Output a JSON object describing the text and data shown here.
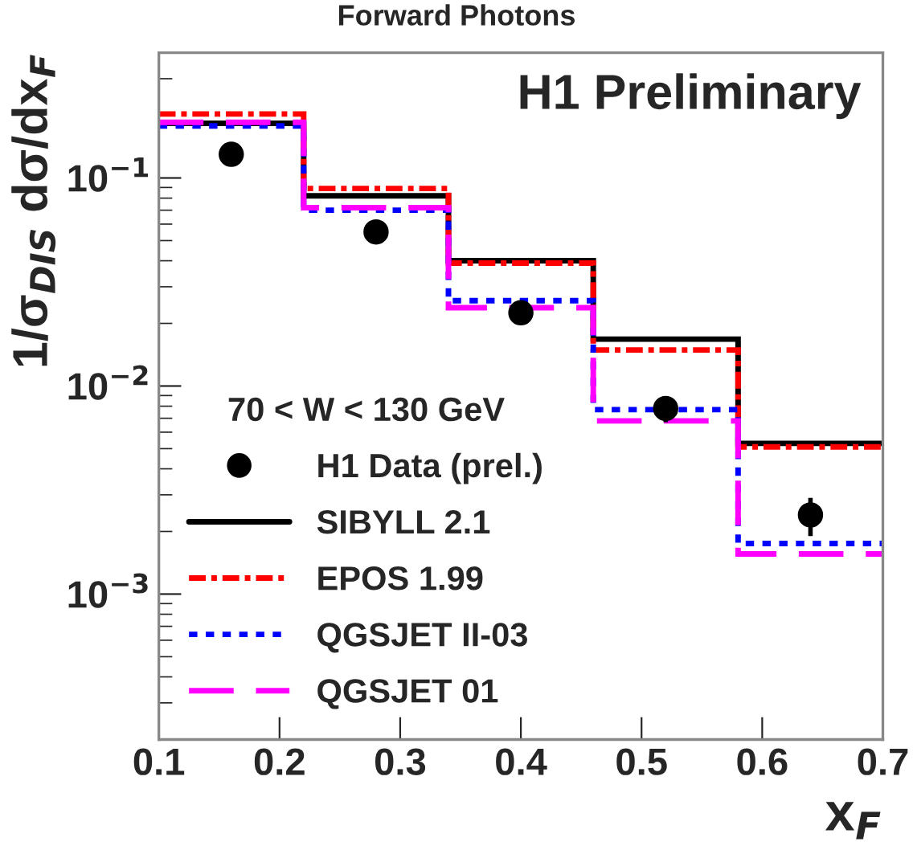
{
  "chart_data": {
    "type": "histogram",
    "title": "Forward Photons",
    "xlabel": "x$_{F}$",
    "ylabel": "1/σ$_{DIS}$ dσ/dx$_{F}$",
    "annotations": [
      "H1 Preliminary"
    ],
    "legend_title": "70 < W < 130 GeV",
    "bins": [
      0.1,
      0.22,
      0.34,
      0.46,
      0.58,
      0.7
    ],
    "series": [
      {
        "type": "scatter",
        "name": "H1 Data (prel.)",
        "color": "#000000",
        "marker": "circle",
        "x": [
          0.16,
          0.28,
          0.4,
          0.52,
          0.64
        ],
        "values": [
          0.13,
          0.055,
          0.0225,
          0.0078,
          0.0024
        ],
        "errors": [
          null,
          null,
          null,
          [
            0.0067,
            0.0089
          ],
          [
            0.0019,
            0.0029
          ]
        ]
      },
      {
        "name": "SIBYLL 2.1",
        "color": "#000000",
        "line_style": "solid",
        "values": [
          0.183,
          0.082,
          0.04,
          0.0168,
          0.0053
        ]
      },
      {
        "name": "EPOS 1.99",
        "color": "#ff0000",
        "line_style": "dashdot",
        "values": [
          0.203,
          0.089,
          0.039,
          0.0149,
          0.0051
        ]
      },
      {
        "name": "QGSJET II-03",
        "color": "#0000ff",
        "line_style": "dotted",
        "values": [
          0.178,
          0.07,
          0.0257,
          0.0077,
          0.00175
        ]
      },
      {
        "name": "QGSJET 01",
        "color": "#ff00ff",
        "line_style": "dashed",
        "values": [
          0.185,
          0.072,
          0.0238,
          0.0068,
          0.00156
        ]
      }
    ],
    "log": "y",
    "xlim": [
      0.1,
      0.7
    ],
    "ylim": [
      0.0002,
      0.4
    ],
    "xticks": [
      0.1,
      0.2,
      0.3,
      0.4,
      0.5,
      0.6,
      0.7
    ],
    "yticks": [
      {
        "value": 0.001,
        "label": "10$^{−3}$"
      },
      {
        "value": 0.01,
        "label": "10$^{−2}$"
      },
      {
        "value": 0.1,
        "label": "10$^{−1}$"
      }
    ],
    "grid": false,
    "legend": "bottom left"
  }
}
